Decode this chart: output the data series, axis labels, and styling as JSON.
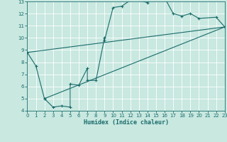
{
  "title": "",
  "xlabel": "Humidex (Indice chaleur)",
  "bg_color": "#c8e8e0",
  "grid_color": "#ffffff",
  "line_color": "#1a6b6b",
  "xlim": [
    0,
    23
  ],
  "ylim": [
    4,
    13
  ],
  "xticks": [
    0,
    1,
    2,
    3,
    4,
    5,
    6,
    7,
    8,
    9,
    10,
    11,
    12,
    13,
    14,
    15,
    16,
    17,
    18,
    19,
    20,
    21,
    22,
    23
  ],
  "yticks": [
    4,
    5,
    6,
    7,
    8,
    9,
    10,
    11,
    12,
    13
  ],
  "line1_x": [
    0,
    1,
    2,
    3,
    4,
    5,
    5,
    6,
    7,
    7,
    8,
    9,
    9,
    10,
    11,
    12,
    13,
    14,
    15,
    16,
    17,
    18,
    19,
    20,
    22,
    23
  ],
  "line1_y": [
    8.8,
    7.7,
    5.0,
    4.3,
    4.4,
    4.3,
    6.2,
    6.1,
    7.5,
    6.5,
    6.5,
    10.0,
    9.8,
    12.5,
    12.6,
    13.1,
    13.1,
    12.9,
    13.4,
    13.3,
    12.0,
    11.8,
    12.0,
    11.6,
    11.7,
    10.9
  ],
  "line2_x": [
    0,
    23
  ],
  "line2_y": [
    8.8,
    10.9
  ],
  "line3_x": [
    2,
    23
  ],
  "line3_y": [
    5.0,
    10.9
  ]
}
